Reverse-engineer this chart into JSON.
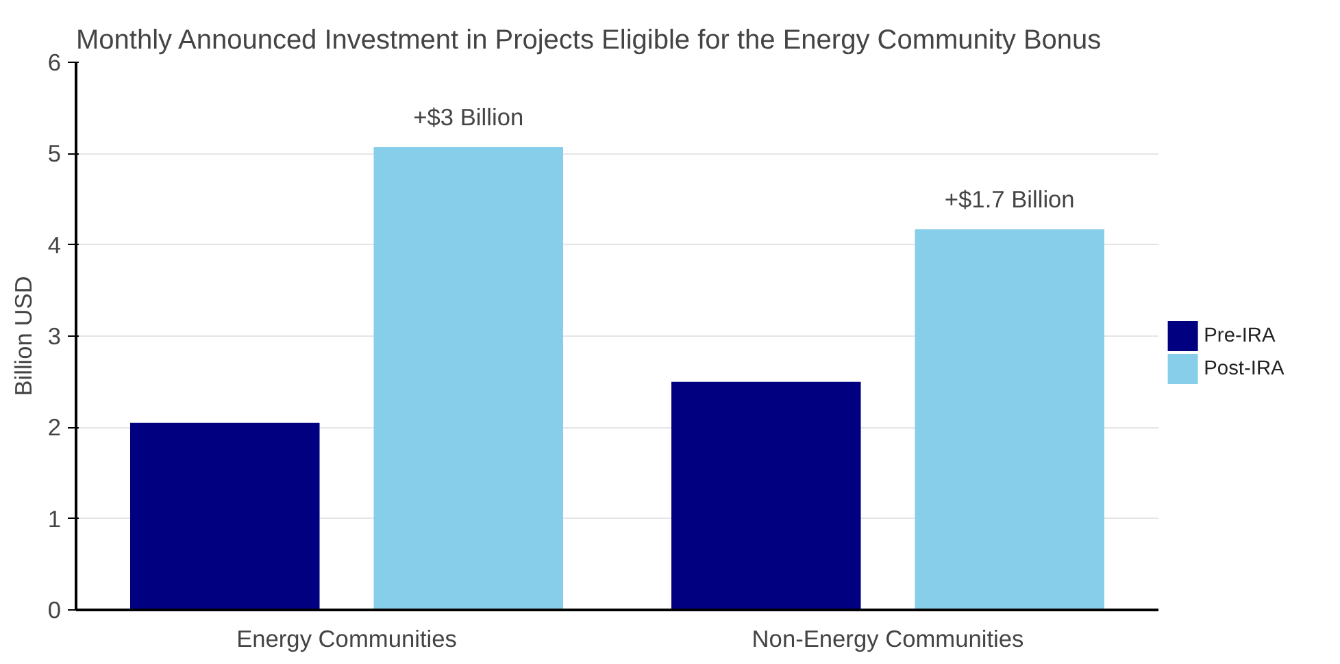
{
  "chart_data": {
    "type": "bar",
    "title": "Monthly Announced Investment in Projects Eligible for the Energy Community Bonus",
    "ylabel": "Billion USD",
    "categories": [
      "Energy Communities",
      "Non-Energy Communities"
    ],
    "series": [
      {
        "name": "Pre-IRA",
        "color": "#000080",
        "values": [
          2.05,
          2.5
        ]
      },
      {
        "name": "Post-IRA",
        "color": "#87ceeb",
        "values": [
          5.07,
          4.17
        ]
      }
    ],
    "annotations": [
      "+$3 Billion",
      "+$1.7 Billion"
    ],
    "ylim": [
      0,
      6
    ],
    "yticks": [
      0,
      1,
      2,
      3,
      4,
      5,
      6
    ],
    "grid": "y",
    "legend": "right"
  }
}
